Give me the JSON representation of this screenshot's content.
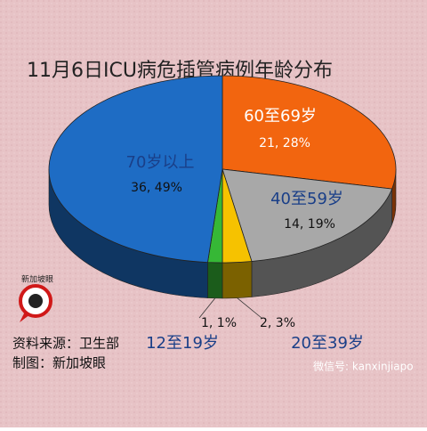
{
  "chart_data": {
    "type": "pie",
    "title": "11月6日ICU病危插管病例年龄分布",
    "categories": [
      "60至69岁",
      "40至59岁",
      "20至39岁",
      "12至19岁",
      "70岁以上"
    ],
    "values": [
      21,
      14,
      2,
      1,
      36
    ],
    "value_labels": [
      "21, 28%",
      "14, 19%",
      "2, 3%",
      "1, 1%",
      "36, 49%"
    ],
    "colors": [
      "#f2650f",
      "#a8a8a8",
      "#f6c200",
      "#36b836",
      "#1e6cc4"
    ]
  },
  "logo": "新加坡眼",
  "source": "资料来源：卫生部",
  "credit": "制图：新加坡眼",
  "watermark": "微信号: kanxinjiapo"
}
